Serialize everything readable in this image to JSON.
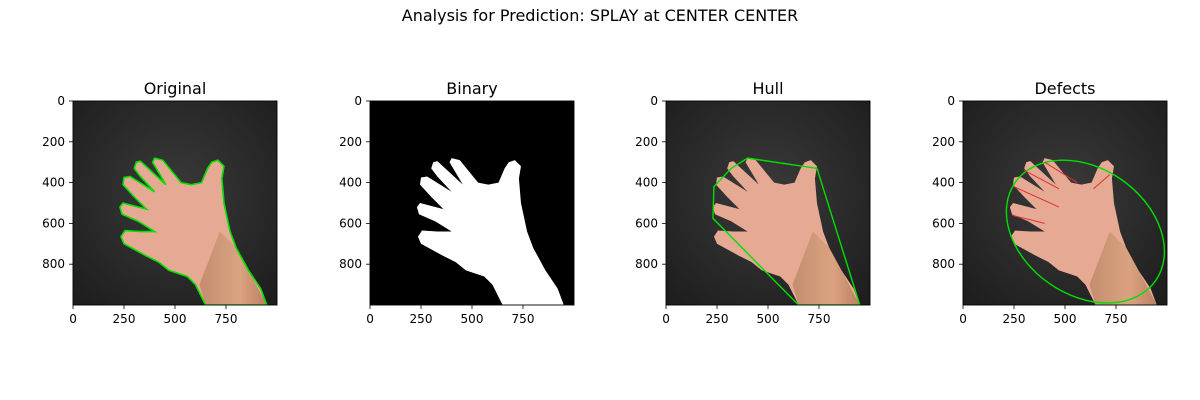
{
  "figure": {
    "suptitle": "Analysis for Prediction: SPLAY at CENTER CENTER",
    "panels": [
      {
        "title": "Original",
        "kind": "original"
      },
      {
        "title": "Binary",
        "kind": "binary"
      },
      {
        "title": "Hull",
        "kind": "hull"
      },
      {
        "title": "Defects",
        "kind": "defects"
      }
    ],
    "x_ticks": [
      "0",
      "250",
      "500",
      "750"
    ],
    "y_ticks": [
      "0",
      "200",
      "400",
      "600",
      "800"
    ],
    "colors": {
      "contour": "#00e000",
      "hull": "#00e000",
      "defect_lines": "#e03030",
      "background_dark": "#2a2a2a",
      "skin": "#e6a994",
      "binary_fg": "#ffffff",
      "binary_bg": "#000000"
    },
    "icons": [
      "hand-image"
    ]
  }
}
